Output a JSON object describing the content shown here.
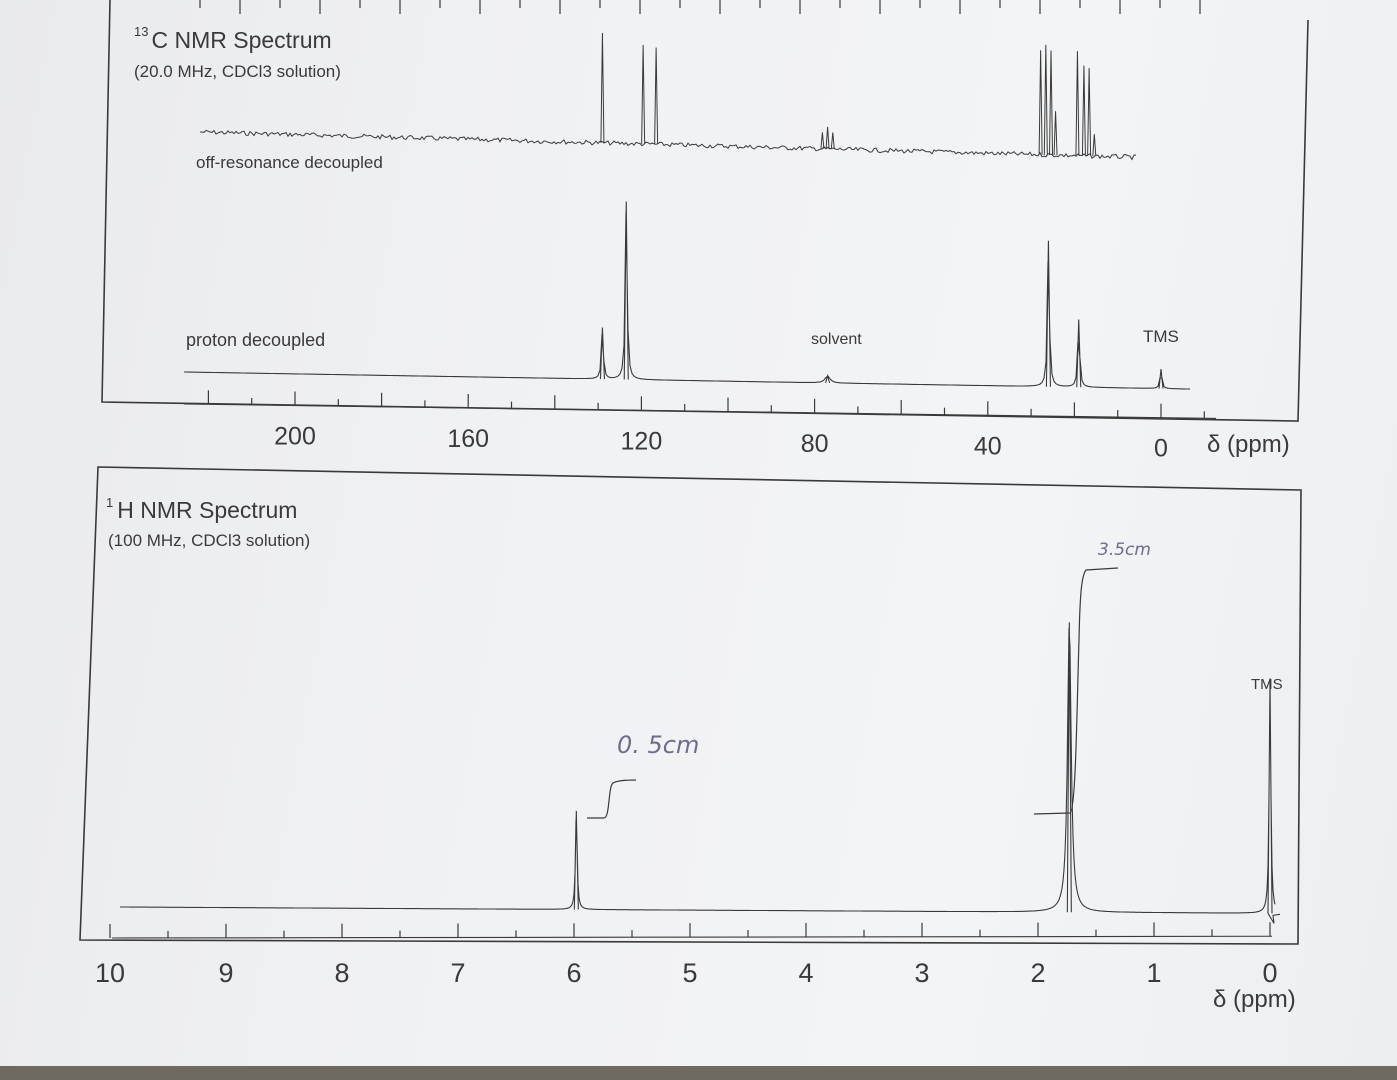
{
  "colors": {
    "ink": "#3a3a3a",
    "pencil": "#6b6f8a",
    "paper": "#f0f1f4"
  },
  "chart_data": [
    {
      "type": "line",
      "title": "C NMR Spectrum",
      "title_superscript": "13",
      "subtitle": "(20.0 MHz, CDCl3 solution)",
      "xlabel": "δ (ppm)",
      "x_ticks": [
        200,
        160,
        120,
        80,
        40,
        0
      ],
      "xlim": [
        220,
        0
      ],
      "x_reversed": true,
      "series": [
        {
          "name": "off-resonance decoupled",
          "multiplets": [
            {
              "delta": 129,
              "lines": [
                {
                  "offset": 0,
                  "height": 1.0
                }
              ]
            },
            {
              "delta": 119,
              "lines": [
                {
                  "offset": 0.4,
                  "height": 0.9
                },
                {
                  "offset": -1.6,
                  "height": 0.88
                }
              ]
            },
            {
              "delta": 77,
              "lines": [
                {
                  "offset": 0.8,
                  "height": 0.15
                },
                {
                  "offset": 0,
                  "height": 0.2
                },
                {
                  "offset": -0.8,
                  "height": 0.15
                }
              ]
            },
            {
              "delta": 25.7,
              "lines": [
                {
                  "offset": 1.4,
                  "height": 0.95
                },
                {
                  "offset": 0.6,
                  "height": 1.0
                },
                {
                  "offset": -0.2,
                  "height": 0.95
                },
                {
                  "offset": -0.9,
                  "height": 0.4
                }
              ]
            },
            {
              "delta": 17.5,
              "lines": [
                {
                  "offset": 1.2,
                  "height": 0.95
                },
                {
                  "offset": 0.2,
                  "height": 0.82
                },
                {
                  "offset": -0.6,
                  "height": 0.8
                },
                {
                  "offset": -1.4,
                  "height": 0.2
                }
              ]
            }
          ]
        },
        {
          "name": "proton decoupled",
          "peaks": [
            {
              "delta": 129.0,
              "height": 0.29
            },
            {
              "delta": 123.5,
              "height": 1.0
            },
            {
              "delta": 77.0,
              "height": 0.04
            },
            {
              "delta": 26.0,
              "height": 0.82
            },
            {
              "delta": 19.0,
              "height": 0.38
            },
            {
              "delta": 0.0,
              "height": 0.11
            }
          ]
        }
      ],
      "annotations": [
        "solvent",
        "TMS"
      ]
    },
    {
      "type": "line",
      "title": "H NMR Spectrum",
      "title_superscript": "1",
      "subtitle": "(100 MHz, CDCl3 solution)",
      "xlabel": "δ (ppm)",
      "x_ticks": [
        10,
        9,
        8,
        7,
        6,
        5,
        4,
        3,
        2,
        1,
        0
      ],
      "xlim": [
        10,
        0
      ],
      "x_reversed": true,
      "series": [
        {
          "name": "1H spectrum",
          "peaks": [
            {
              "delta": 5.98,
              "height": 0.34,
              "integral": "0. 5cm"
            },
            {
              "delta": 1.73,
              "height": 1.0,
              "integral": "3.5cm"
            },
            {
              "delta": 0.0,
              "height": 0.81
            }
          ]
        }
      ],
      "annotations": [
        "TMS"
      ],
      "handwritten_notes": [
        "0. 5cm",
        "3.5cm"
      ]
    }
  ]
}
